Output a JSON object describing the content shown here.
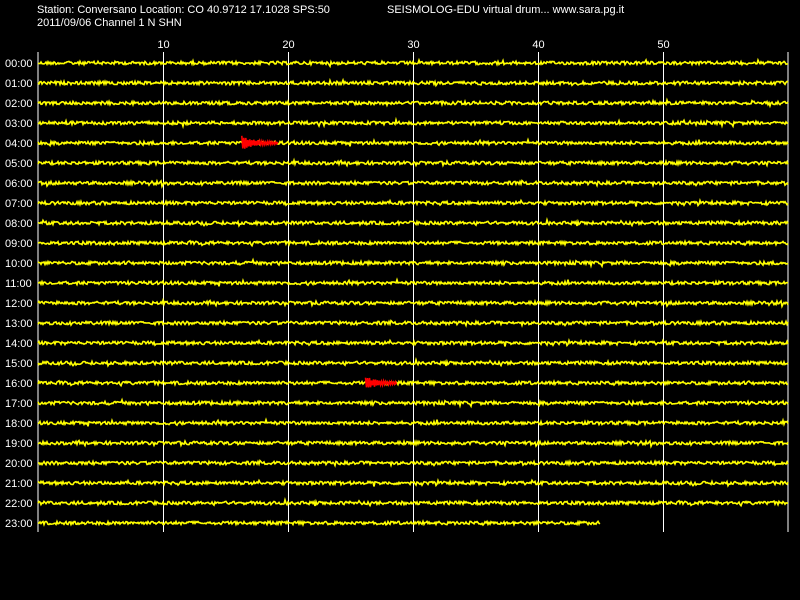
{
  "header": {
    "station_line": "Station: Conversano Location: CO 40.9712 17.1028 SPS:50",
    "date_line": "2011/09/06  Channel 1 N SHN",
    "software_line": "SEISMOLOG-EDU virtual drum... www.sara.pg.it"
  },
  "colors": {
    "background": "#000000",
    "trace": "#ffff00",
    "event": "#ff0000",
    "grid": "#ffffff",
    "text": "#ffffff"
  },
  "chart_data": {
    "type": "line",
    "x_ticks": [
      10,
      20,
      30,
      40,
      50
    ],
    "xlim": [
      0,
      60
    ],
    "grid": true,
    "rows": [
      "00:00",
      "01:00",
      "02:00",
      "03:00",
      "04:00",
      "05:00",
      "06:00",
      "07:00",
      "08:00",
      "09:00",
      "10:00",
      "11:00",
      "12:00",
      "13:00",
      "14:00",
      "15:00",
      "16:00",
      "17:00",
      "18:00",
      "19:00",
      "20:00",
      "21:00",
      "22:00",
      "23:00"
    ],
    "last_row_end_minute": 45,
    "events": [
      {
        "row": "04:00",
        "start_minute": 16.3,
        "end_minute": 19.2
      },
      {
        "row": "16:00",
        "start_minute": 26.2,
        "end_minute": 28.7
      }
    ]
  }
}
